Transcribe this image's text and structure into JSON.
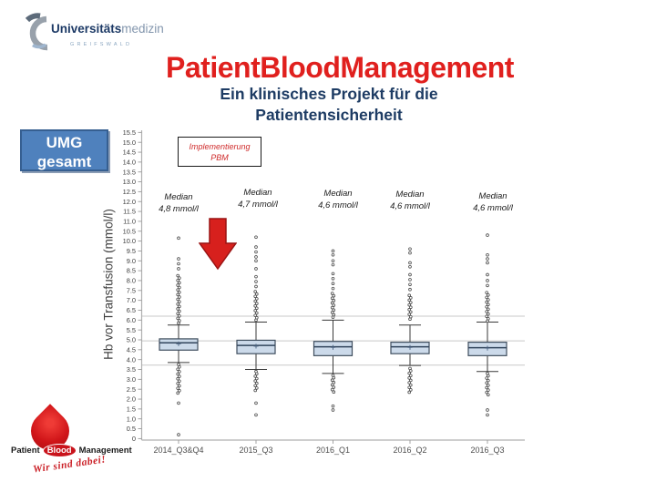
{
  "slide": {
    "title": "PatientBloodManagement",
    "subtitle_line1": "Ein klinisches Projekt für die",
    "subtitle_line2": "Patientensicherheit"
  },
  "logo_top": {
    "name_bold": "Universitäts",
    "name_light": "medizin",
    "city": "GREIFSWALD"
  },
  "logo_bottom": {
    "part1": "Patient",
    "part2": "Blood",
    "part3": "Management",
    "slogan": "Wir sind dabei!"
  },
  "badge": {
    "line1": "UMG",
    "line2": "gesamt"
  },
  "annotation_box": {
    "line1": "Implementierung",
    "line2": "PBM"
  },
  "colors": {
    "title_red": "#e0201e",
    "navy": "#1e3c64",
    "badge_blue": "#4f81bd",
    "box_fill": "#ccdaea",
    "box_border": "#3f4e5e",
    "arrow_red": "#d7201d",
    "callout_text_red": "#cf2b2b",
    "slogan_red": "#cb2128",
    "gridline_gray": "#c9c9c9"
  },
  "chart_data": {
    "type": "boxplot",
    "ylabel": "Hb vor Transfusion (mmol/l)",
    "ylim": [
      0,
      15.5
    ],
    "ytick_step": 0.5,
    "grid": "horizontal-reference-lines",
    "reference_lines": [
      6.2,
      4.95,
      3.72
    ],
    "categories": [
      "2014_Q3&Q4",
      "2015_Q3",
      "2016_Q1",
      "2016_Q2",
      "2016_Q3"
    ],
    "median_labels": [
      {
        "line1": "Median",
        "line2": "4,8 mmol/l"
      },
      {
        "line1": "Median",
        "line2": "4,7 mmol/l"
      },
      {
        "line1": "Median",
        "line2": "4,6 mmol/l"
      },
      {
        "line1": "Median",
        "line2": "4,6 mmol/l"
      },
      {
        "line1": "Median",
        "line2": "4,6 mmol/l"
      }
    ],
    "boxes": [
      {
        "category": "2014_Q3&Q4",
        "q1": 4.48,
        "q3": 5.05,
        "median": 4.85,
        "mean": 4.8,
        "whisker_low": 3.85,
        "whisker_high": 5.75,
        "outliers_high_dense": [
          5.85,
          8.25
        ],
        "outliers_high": [
          8.6,
          8.85,
          9.1,
          10.15
        ],
        "outliers_low_dense": [
          2.3,
          3.75
        ],
        "outliers_low": [
          1.8,
          0.2
        ]
      },
      {
        "category": "2015_Q3",
        "q1": 4.3,
        "q3": 4.98,
        "median": 4.72,
        "mean": 4.68,
        "whisker_low": 3.5,
        "whisker_high": 5.9,
        "outliers_high_dense": [
          6.0,
          7.45
        ],
        "outliers_high": [
          7.7,
          7.95,
          8.2,
          8.6,
          9.0,
          9.2,
          9.45,
          9.7,
          10.2
        ],
        "outliers_low_dense": [
          2.35,
          3.4
        ],
        "outliers_low": [
          1.8,
          1.2
        ]
      },
      {
        "category": "2016_Q1",
        "q1": 4.2,
        "q3": 4.92,
        "median": 4.65,
        "mean": 4.62,
        "whisker_low": 3.3,
        "whisker_high": 6.0,
        "outliers_high_dense": [
          6.15,
          7.35
        ],
        "outliers_high": [
          7.6,
          7.85,
          8.1,
          8.35,
          8.8,
          9.0,
          9.3,
          9.5
        ],
        "outliers_low_dense": [
          2.3,
          3.2
        ],
        "outliers_low": [
          1.65,
          1.45
        ]
      },
      {
        "category": "2016_Q2",
        "q1": 4.3,
        "q3": 4.88,
        "median": 4.65,
        "mean": 4.62,
        "whisker_low": 3.7,
        "whisker_high": 5.75,
        "outliers_high_dense": [
          6.05,
          7.3
        ],
        "outliers_high": [
          7.55,
          7.8,
          8.05,
          8.3,
          8.7,
          8.9,
          9.4,
          9.6
        ],
        "outliers_low_dense": [
          2.3,
          3.55
        ],
        "outliers_low": []
      },
      {
        "category": "2016_Q3",
        "q1": 4.2,
        "q3": 4.88,
        "median": 4.6,
        "mean": 4.58,
        "whisker_low": 3.4,
        "whisker_high": 5.9,
        "outliers_high_dense": [
          5.95,
          7.5
        ],
        "outliers_high": [
          7.75,
          8.0,
          8.3,
          8.9,
          9.1,
          9.3,
          10.3
        ],
        "outliers_low_dense": [
          2.2,
          3.3
        ],
        "outliers_low": [
          1.45,
          1.2
        ]
      }
    ]
  }
}
